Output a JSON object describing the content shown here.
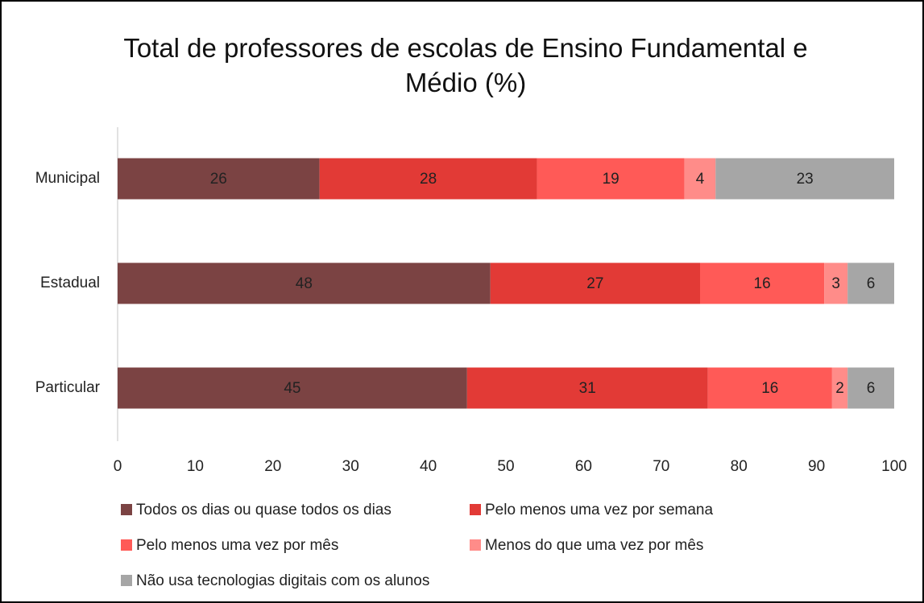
{
  "chart_data": {
    "type": "bar",
    "orientation": "horizontal",
    "stacked": true,
    "title": "Total de professores de escolas de Ensino Fundamental e Médio (%)",
    "categories": [
      "Municipal",
      "Estadual",
      "Particular"
    ],
    "series": [
      {
        "name": "Todos os dias ou quase todos os dias",
        "color": "#7b4343",
        "values": [
          26,
          48,
          45
        ]
      },
      {
        "name": "Pelo menos uma vez por semana",
        "color": "#e23a36",
        "values": [
          28,
          27,
          31
        ]
      },
      {
        "name": "Pelo menos uma vez por mês",
        "color": "#ff5a57",
        "values": [
          19,
          16,
          16
        ]
      },
      {
        "name": "Menos do que uma vez por mês",
        "color": "#ff8c89",
        "values": [
          4,
          3,
          2
        ]
      },
      {
        "name": "Não usa tecnologias digitais com os alunos",
        "color": "#a6a6a6",
        "values": [
          23,
          6,
          6
        ]
      }
    ],
    "xlim": [
      0,
      100
    ],
    "xticks": [
      0,
      10,
      20,
      30,
      40,
      50,
      60,
      70,
      80,
      90,
      100
    ],
    "grid": false,
    "legend": "bottom"
  }
}
